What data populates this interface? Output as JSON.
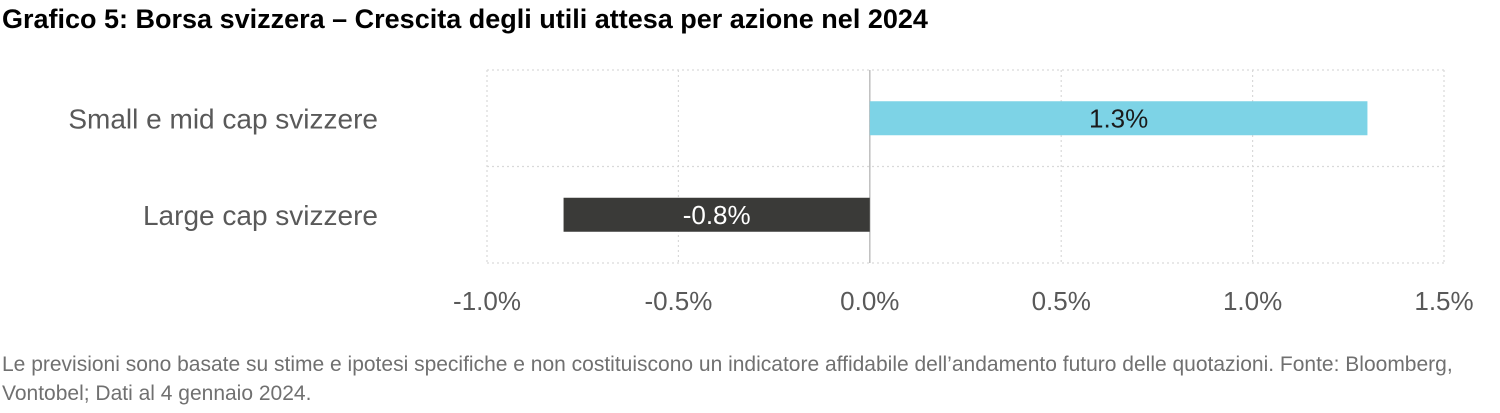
{
  "title": "Grafico 5: Borsa svizzera – Crescita degli utili attesa per azione nel 2024",
  "footnote": "Le previsioni sono basate su stime e ipotesi specifiche e non costituiscono un indicatore affidabile dell’andamento futuro delle quotazioni. Fonte: Bloomberg, Vontobel; Dati al 4 gennaio 2024.",
  "chart_data": {
    "type": "bar",
    "orientation": "horizontal",
    "categories": [
      "Small e mid cap svizzere",
      "Large cap svizzere"
    ],
    "values": [
      1.3,
      -0.8
    ],
    "data_labels": [
      "1.3%",
      "-0.8%"
    ],
    "bar_colors": [
      "#7dd3e6",
      "#3a3a38"
    ],
    "data_label_colors": [
      "#1a1a1a",
      "#ffffff"
    ],
    "xlim": [
      -1.0,
      1.5
    ],
    "xticks": [
      -1.0,
      -0.5,
      0.0,
      0.5,
      1.0,
      1.5
    ],
    "xtick_labels": [
      "-1.0%",
      "-0.5%",
      "0.0%",
      "0.5%",
      "1.0%",
      "1.5%"
    ],
    "grid": true,
    "legend": "none"
  }
}
